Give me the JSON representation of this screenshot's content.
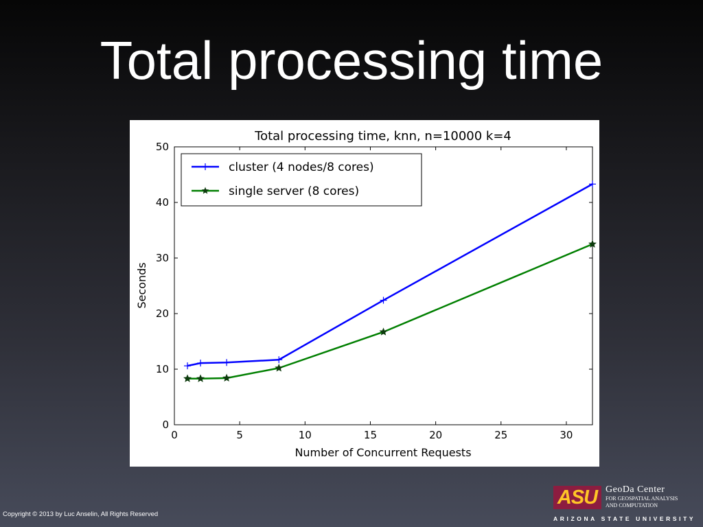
{
  "slide": {
    "title": "Total processing time",
    "copyright": "Copyright © 2013 by Luc Anselin, All Rights Reserved",
    "logo": {
      "asu_mark": "ASU",
      "center_name": "GeoDa Center",
      "center_subtitle_1": "FOR GEOSPATIAL ANALYSIS",
      "center_subtitle_2": "AND COMPUTATION",
      "university": "ARIZONA STATE UNIVERSITY"
    }
  },
  "chart_data": {
    "type": "line",
    "title": "Total processing time, knn, n=10000 k=4",
    "xlabel": "Number of Concurrent Requests",
    "ylabel": "Seconds",
    "xlim": [
      0,
      32
    ],
    "ylim": [
      0,
      50
    ],
    "xticks": [
      0,
      5,
      10,
      15,
      20,
      25,
      30
    ],
    "yticks": [
      0,
      10,
      20,
      30,
      40,
      50
    ],
    "grid": false,
    "legend_position": "upper-left",
    "x": [
      1,
      2,
      4,
      8,
      16,
      32
    ],
    "series": [
      {
        "name": "cluster (4 nodes/8 cores)",
        "color": "#0000ff",
        "marker": "plus",
        "values": [
          10.6,
          11.1,
          11.2,
          11.7,
          22.4,
          43.3
        ]
      },
      {
        "name": "single server (8 cores)",
        "color": "#007f00",
        "marker": "star",
        "values": [
          8.3,
          8.3,
          8.4,
          10.2,
          16.7,
          32.5
        ]
      }
    ]
  }
}
